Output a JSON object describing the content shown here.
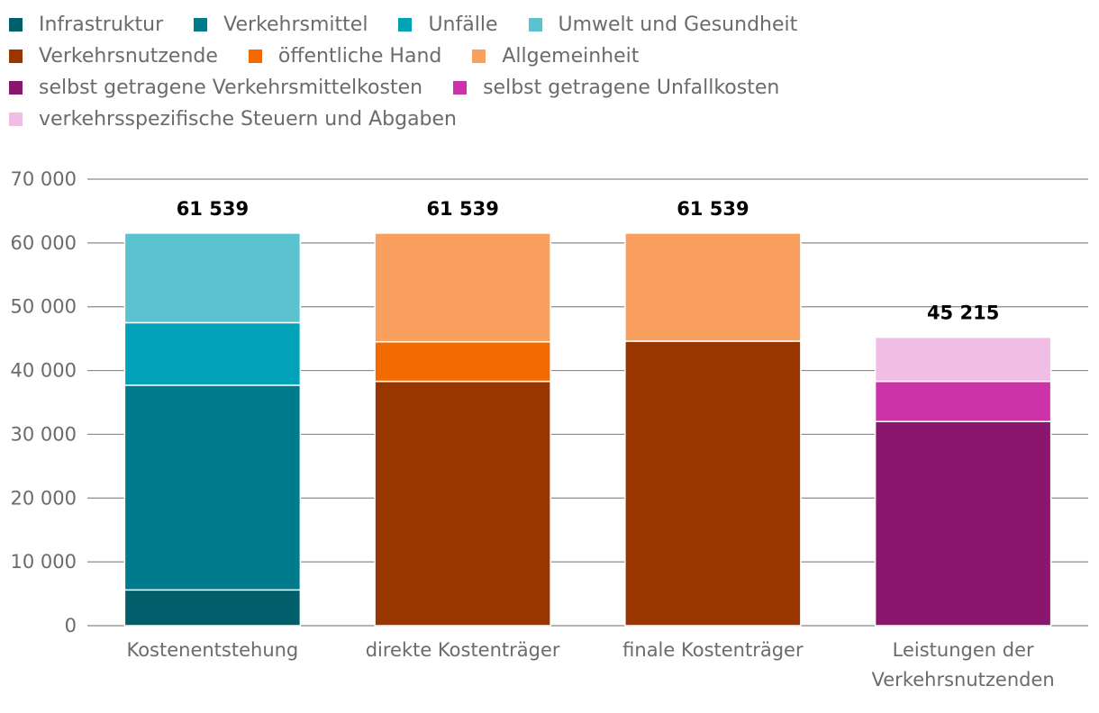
{
  "chart_data": {
    "type": "bar",
    "stacked": true,
    "legend_position": "top-left",
    "grid": true,
    "ylim": [
      0,
      70000
    ],
    "yticks": [
      0,
      10000,
      20000,
      30000,
      40000,
      50000,
      60000,
      70000
    ],
    "ytick_labels": [
      "0",
      "10 000",
      "20 000",
      "30 000",
      "40 000",
      "50 000",
      "60 000",
      "70 000"
    ],
    "categories": [
      [
        "Kostenentstehung"
      ],
      [
        "direkte Kostenträger"
      ],
      [
        "finale Kostenträger"
      ],
      [
        "Leistungen der",
        "Verkehrsnutzenden"
      ]
    ],
    "series": [
      {
        "name": "Infrastruktur",
        "color": "#005f6b",
        "values": [
          5600,
          0,
          0,
          0
        ]
      },
      {
        "name": "Verkehrsmittel",
        "color": "#007b8c",
        "values": [
          32100,
          0,
          0,
          0
        ]
      },
      {
        "name": "Unfälle",
        "color": "#00a2b8",
        "values": [
          9800,
          0,
          0,
          0
        ]
      },
      {
        "name": "Umwelt und Gesundheit",
        "color": "#5bc3cf",
        "values": [
          14039,
          0,
          0,
          0
        ]
      },
      {
        "name": "Verkehrsnutzende",
        "color": "#993600",
        "values": [
          0,
          38300,
          44600,
          0
        ]
      },
      {
        "name": "öffentliche Hand",
        "color": "#f26a00",
        "values": [
          0,
          6200,
          0,
          0
        ]
      },
      {
        "name": "Allgemeinheit",
        "color": "#f9a05f",
        "values": [
          0,
          17039,
          16939,
          0
        ]
      },
      {
        "name": "selbst getragene Verkehrsmittelkosten",
        "color": "#8a166e",
        "values": [
          0,
          0,
          0,
          32000
        ]
      },
      {
        "name": "selbst getragene Unfallkosten",
        "color": "#cc33a8",
        "values": [
          0,
          0,
          0,
          6300
        ]
      },
      {
        "name": "verkehrsspezifische Steuern und Abgaben",
        "color": "#f0bde4",
        "values": [
          0,
          0,
          0,
          6915
        ]
      }
    ],
    "totals": [
      "61 539",
      "61 539",
      "61 539",
      "45 215"
    ],
    "legend_rows": [
      [
        0,
        1,
        2,
        3
      ],
      [
        4,
        5,
        6
      ],
      [
        7,
        8
      ],
      [
        9
      ]
    ]
  }
}
